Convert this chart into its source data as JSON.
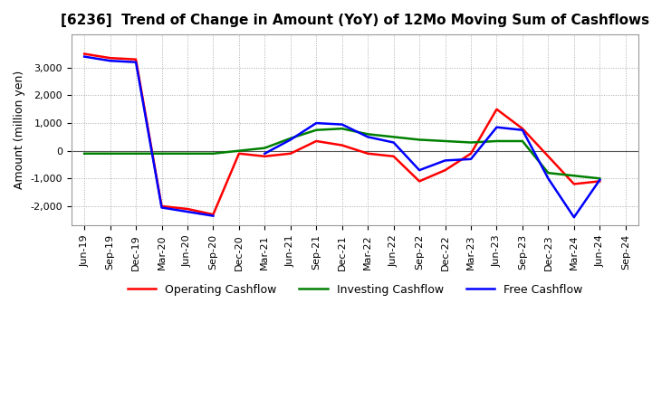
{
  "title": "[6236]  Trend of Change in Amount (YoY) of 12Mo Moving Sum of Cashflows",
  "ylabel": "Amount (million yen)",
  "x_labels": [
    "Jun-19",
    "Sep-19",
    "Dec-19",
    "Mar-20",
    "Jun-20",
    "Sep-20",
    "Dec-20",
    "Mar-21",
    "Jun-21",
    "Sep-21",
    "Dec-21",
    "Mar-22",
    "Jun-22",
    "Sep-22",
    "Dec-22",
    "Mar-23",
    "Jun-23",
    "Sep-23",
    "Dec-23",
    "Mar-24",
    "Jun-24",
    "Sep-24"
  ],
  "operating": [
    3500,
    3350,
    3300,
    -2000,
    -2100,
    -2300,
    -100,
    -200,
    -100,
    350,
    200,
    -100,
    -200,
    -1100,
    -700,
    -100,
    1500,
    800,
    -200,
    -1200,
    -1100,
    null
  ],
  "investing": [
    -100,
    -100,
    -100,
    -100,
    -100,
    -100,
    0,
    100,
    450,
    750,
    800,
    600,
    500,
    400,
    350,
    300,
    350,
    350,
    -800,
    -900,
    -1000,
    null
  ],
  "free": [
    3400,
    3250,
    3200,
    -2050,
    -2200,
    -2350,
    null,
    -100,
    400,
    1000,
    950,
    500,
    300,
    -700,
    -350,
    -300,
    850,
    750,
    -1000,
    -2400,
    -1050,
    null
  ],
  "ylim": [
    -2700,
    4200
  ],
  "yticks": [
    -2000,
    -1000,
    0,
    1000,
    2000,
    3000
  ],
  "colors": {
    "operating": "#ff0000",
    "investing": "#008000",
    "free": "#0000ff"
  },
  "legend_labels": [
    "Operating Cashflow",
    "Investing Cashflow",
    "Free Cashflow"
  ],
  "background_color": "#ffffff",
  "grid_color": "#aaaaaa",
  "grid_style": ":"
}
